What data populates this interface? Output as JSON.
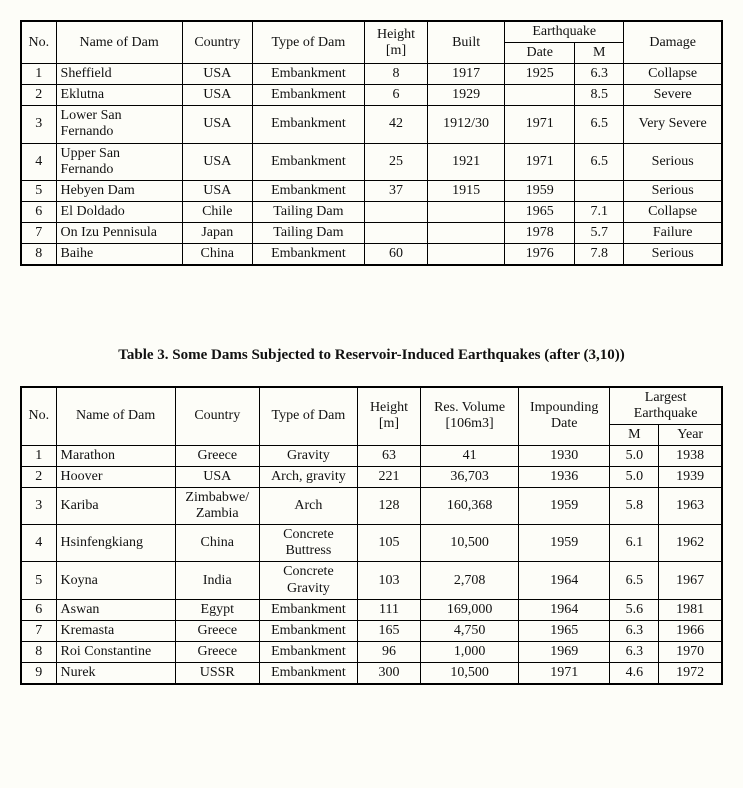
{
  "table1": {
    "headers": {
      "no": "No.",
      "name": "Name of Dam",
      "country": "Country",
      "type": "Type of Dam",
      "height": "Height [m]",
      "built": "Built",
      "earthquake": "Earthquake",
      "date": "Date",
      "m": "M",
      "damage": "Damage"
    },
    "rows": [
      {
        "no": "1",
        "name": "Sheffield",
        "country": "USA",
        "type": "Embankment",
        "height": "8",
        "built": "1917",
        "date": "1925",
        "m": "6.3",
        "damage": "Collapse"
      },
      {
        "no": "2",
        "name": "Eklutna",
        "country": "USA",
        "type": "Embankment",
        "height": "6",
        "built": "1929",
        "date": "",
        "m": "8.5",
        "damage": "Severe"
      },
      {
        "no": "3",
        "name": "Lower San Fernando",
        "country": "USA",
        "type": "Embankment",
        "height": "42",
        "built": "1912/30",
        "date": "1971",
        "m": "6.5",
        "damage": "Very Severe"
      },
      {
        "no": "4",
        "name": "Upper San Fernando",
        "country": "USA",
        "type": "Embankment",
        "height": "25",
        "built": "1921",
        "date": "1971",
        "m": "6.5",
        "damage": "Serious"
      },
      {
        "no": "5",
        "name": "Hebyen Dam",
        "country": "USA",
        "type": "Embankment",
        "height": "37",
        "built": "1915",
        "date": "1959",
        "m": "",
        "damage": "Serious"
      },
      {
        "no": "6",
        "name": "El Doldado",
        "country": "Chile",
        "type": "Tailing Dam",
        "height": "",
        "built": "",
        "date": "1965",
        "m": "7.1",
        "damage": "Collapse"
      },
      {
        "no": "7",
        "name": "On Izu Pennisula",
        "country": "Japan",
        "type": "Tailing Dam",
        "height": "",
        "built": "",
        "date": "1978",
        "m": "5.7",
        "damage": "Failure"
      },
      {
        "no": "8",
        "name": "Baihe",
        "country": "China",
        "type": "Embankment",
        "height": "60",
        "built": "",
        "date": "1976",
        "m": "7.8",
        "damage": "Serious"
      }
    ]
  },
  "caption": "Table 3.  Some Dams Subjected to Reservoir-Induced Earthquakes (after (3,10))",
  "table2": {
    "headers": {
      "no": "No.",
      "name": "Name of Dam",
      "country": "Country",
      "type": "Type of Dam",
      "height": "Height [m]",
      "vol": "Res. Volume [106m3]",
      "impound": "Impounding Date",
      "largest": "Largest Earthquake",
      "m": "M",
      "year": "Year"
    },
    "rows": [
      {
        "no": "1",
        "name": "Marathon",
        "country": "Greece",
        "type": "Gravity",
        "height": "63",
        "vol": "41",
        "impound": "1930",
        "m": "5.0",
        "year": "1938"
      },
      {
        "no": "2",
        "name": "Hoover",
        "country": "USA",
        "type": "Arch, gravity",
        "height": "221",
        "vol": "36,703",
        "impound": "1936",
        "m": "5.0",
        "year": "1939"
      },
      {
        "no": "3",
        "name": "Kariba",
        "country": "Zimbabwe/ Zambia",
        "type": "Arch",
        "height": "128",
        "vol": "160,368",
        "impound": "1959",
        "m": "5.8",
        "year": "1963"
      },
      {
        "no": "4",
        "name": "Hsinfengkiang",
        "country": "China",
        "type": "Concrete Buttress",
        "height": "105",
        "vol": "10,500",
        "impound": "1959",
        "m": "6.1",
        "year": "1962"
      },
      {
        "no": "5",
        "name": "Koyna",
        "country": "India",
        "type": "Concrete Gravity",
        "height": "103",
        "vol": "2,708",
        "impound": "1964",
        "m": "6.5",
        "year": "1967"
      },
      {
        "no": "6",
        "name": "Aswan",
        "country": "Egypt",
        "type": "Embankment",
        "height": "111",
        "vol": "169,000",
        "impound": "1964",
        "m": "5.6",
        "year": "1981"
      },
      {
        "no": "7",
        "name": "Kremasta",
        "country": "Greece",
        "type": "Embankment",
        "height": "165",
        "vol": "4,750",
        "impound": "1965",
        "m": "6.3",
        "year": "1966"
      },
      {
        "no": "8",
        "name": "Roi Constantine",
        "country": "Greece",
        "type": "Embankment",
        "height": "96",
        "vol": "1,000",
        "impound": "1969",
        "m": "6.3",
        "year": "1970"
      },
      {
        "no": "9",
        "name": "Nurek",
        "country": "USSR",
        "type": "Embankment",
        "height": "300",
        "vol": "10,500",
        "impound": "1971",
        "m": "4.6",
        "year": "1972"
      }
    ]
  },
  "col_widths": {
    "t1": [
      "5%",
      "18%",
      "10%",
      "16%",
      "9%",
      "11%",
      "10%",
      "7%",
      "14%"
    ],
    "t2": [
      "5%",
      "17%",
      "12%",
      "14%",
      "9%",
      "14%",
      "13%",
      "7%",
      "9%"
    ]
  }
}
